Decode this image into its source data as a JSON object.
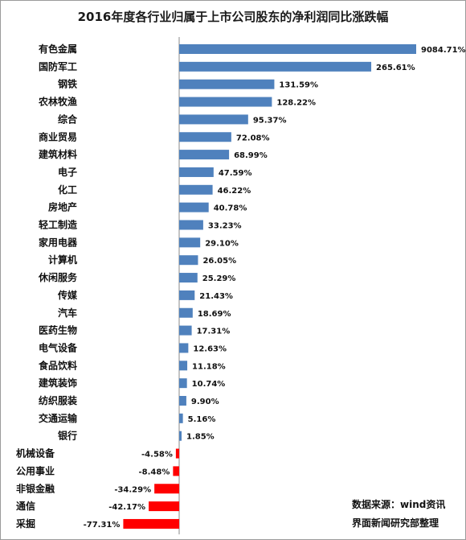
{
  "chart_data": {
    "type": "bar",
    "orientation": "horizontal",
    "title": "2016年度各行业归属于上市公司股东的净利润同比涨跌幅",
    "categories": [
      "有色金属",
      "国防军工",
      "钢铁",
      "农林牧渔",
      "综合",
      "商业贸易",
      "建筑材料",
      "电子",
      "化工",
      "房地产",
      "轻工制造",
      "家用电器",
      "计算机",
      "休闲服务",
      "传媒",
      "汽车",
      "医药生物",
      "电气设备",
      "食品饮料",
      "建筑装饰",
      "纺织服装",
      "交通运输",
      "银行",
      "机械设备",
      "公用事业",
      "非银金融",
      "通信",
      "采掘"
    ],
    "values": [
      9084.71,
      265.61,
      131.59,
      128.22,
      95.37,
      72.08,
      68.99,
      47.59,
      46.22,
      40.78,
      33.23,
      29.1,
      26.05,
      25.29,
      21.43,
      18.69,
      17.31,
      12.63,
      11.18,
      10.74,
      9.9,
      5.16,
      1.85,
      -4.58,
      -8.48,
      -34.29,
      -42.17,
      -77.31
    ],
    "labels": [
      "9084.71%",
      "265.61%",
      "131.59%",
      "128.22%",
      "95.37%",
      "72.08%",
      "68.99%",
      "47.59%",
      "46.22%",
      "40.78%",
      "33.23%",
      "29.10%",
      "26.05%",
      "25.29%",
      "21.43%",
      "18.69%",
      "17.31%",
      "12.63%",
      "11.18%",
      "10.74%",
      "9.90%",
      "5.16%",
      "1.85%",
      "-4.58%",
      "-8.48%",
      "-34.29%",
      "-42.17%",
      "-77.31%"
    ],
    "axis_break": true,
    "colors": {
      "positive": "#4f81bd",
      "negative": "#ff0000",
      "axis": "#888888"
    },
    "grid": false,
    "legend": "none"
  },
  "source": {
    "line1": "数据来源：wind资讯",
    "line2": "界面新闻研究部整理"
  }
}
